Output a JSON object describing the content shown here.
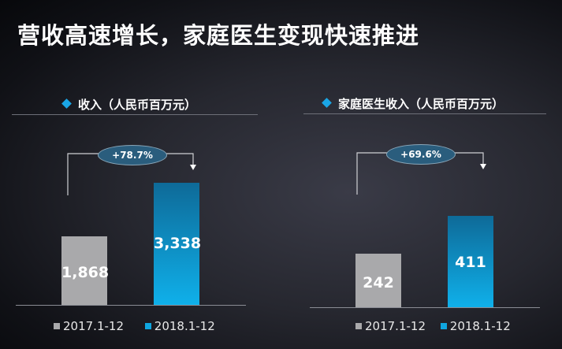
{
  "title": "营收高速增长，家庭医生变现快速推进",
  "colors": {
    "grey": "#a9a9ab",
    "blue": "#0fa6e0",
    "accent": "#1aa6e6"
  },
  "chart_data": [
    {
      "type": "bar",
      "title": "收入（人民币百万元）",
      "categories": [
        "2017.1-12",
        "2018.1-12"
      ],
      "values": [
        1868,
        3338
      ],
      "value_labels": [
        "1,868",
        "3,338"
      ],
      "growth_label": "+78.7%",
      "legend": [
        "2017.1-12",
        "2018.1-12"
      ],
      "ylim": [
        0,
        5600
      ]
    },
    {
      "type": "bar",
      "title": "家庭医生收入（人民币百万元）",
      "categories": [
        "2017.1-12",
        "2018.1-12"
      ],
      "values": [
        242,
        411
      ],
      "value_labels": [
        "242",
        "411"
      ],
      "growth_label": "+69.6%",
      "legend": [
        "2017.1-12",
        "2018.1-12"
      ],
      "ylim": [
        0,
        850
      ]
    }
  ]
}
